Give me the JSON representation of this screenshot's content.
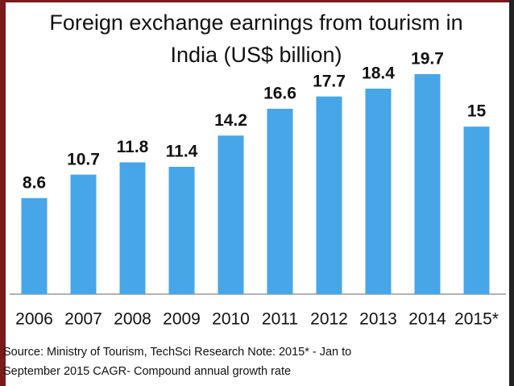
{
  "chart_data": {
    "type": "bar",
    "title": [
      "Foreign exchange earnings from tourism in",
      "India (US$ billion)"
    ],
    "categories": [
      "2006",
      "2007",
      "2008",
      "2009",
      "2010",
      "2011",
      "2012",
      "2013",
      "2014",
      "2015*"
    ],
    "values": [
      8.6,
      10.7,
      11.8,
      11.4,
      14.2,
      16.6,
      17.7,
      18.4,
      19.7,
      15
    ],
    "color": "#46a6e8",
    "note": [
      "Source: Ministry of Tourism, TechSci Research Note: 2015* -  Jan to",
      "September 2015 CAGR- Compound annual growth rate"
    ]
  }
}
